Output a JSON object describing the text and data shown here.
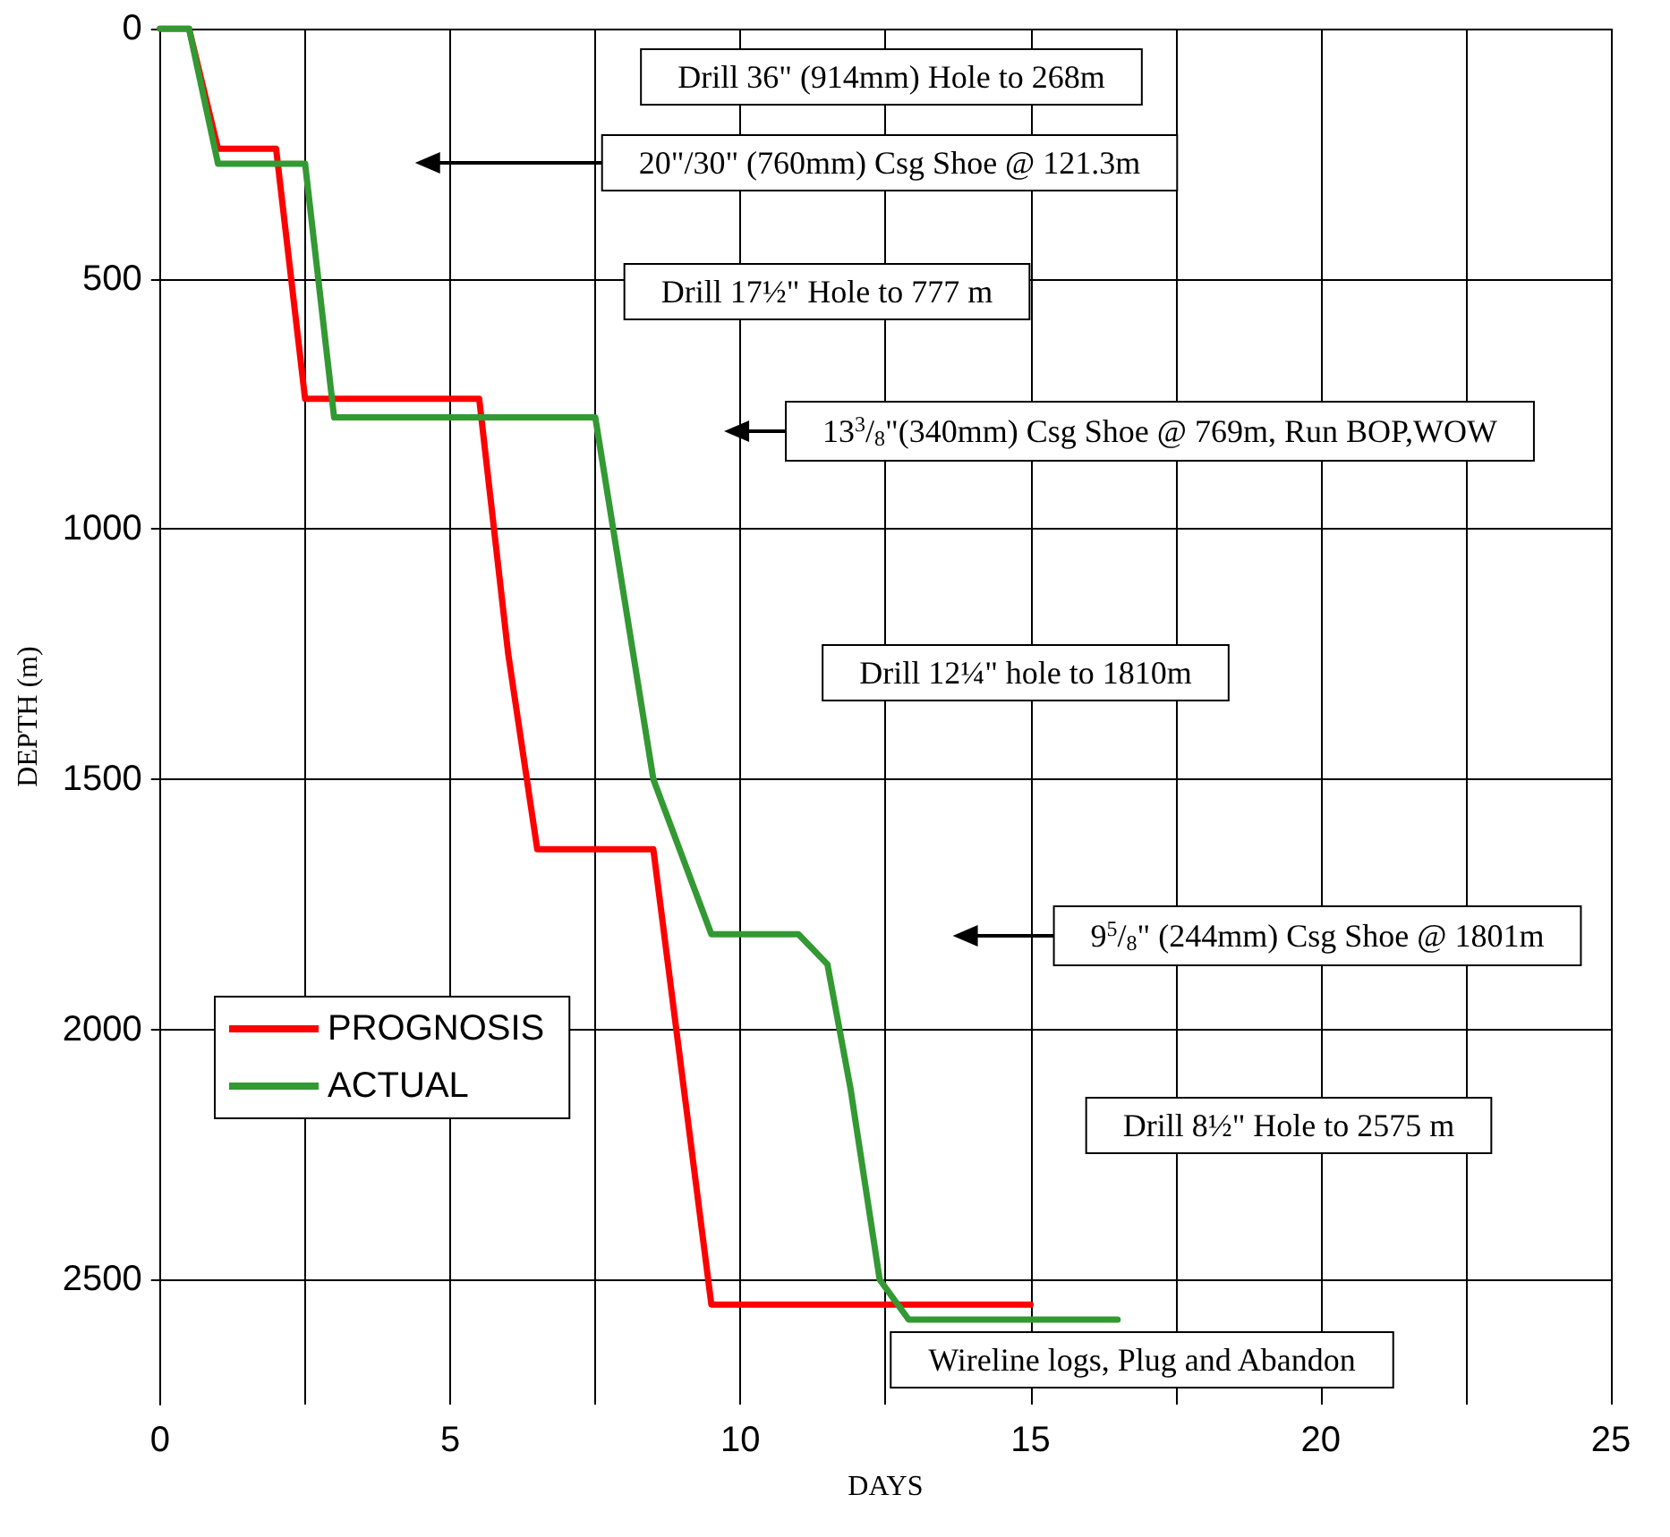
{
  "chart_data": {
    "type": "line",
    "xlabel": "DAYS",
    "ylabel": "DEPTH (m)",
    "xlim": [
      0,
      25
    ],
    "xticks": [
      0,
      {
        "value": 2.5,
        "label": null
      },
      5,
      {
        "value": 7.5,
        "label": null
      },
      10,
      {
        "value": 12.5,
        "label": null
      },
      15,
      {
        "value": 17.5,
        "label": null
      },
      20,
      {
        "value": 22.5,
        "label": null
      },
      25
    ],
    "ylim": [
      2750,
      0
    ],
    "yticks": [
      0,
      500,
      1000,
      1500,
      2000,
      2500
    ],
    "grid": true,
    "legend": "bottom left",
    "marker": "none",
    "line_style": "solid",
    "series": [
      {
        "name": "PROGNOSIS",
        "color": "#ff0000",
        "x": [
          0,
          0.5,
          1,
          2,
          2.5,
          5.5,
          6,
          6.5,
          8.5,
          9.5,
          15
        ],
        "values": [
          0,
          0,
          240,
          240,
          740,
          740,
          1250,
          1640,
          1640,
          2550,
          2550
        ]
      },
      {
        "name": "ACTUAL",
        "color": "#339933",
        "x": [
          0,
          0.5,
          1,
          2.5,
          3,
          7.5,
          8.5,
          9.5,
          11,
          11.5,
          11.9,
          12.4,
          12.9,
          16.5
        ],
        "values": [
          0,
          0,
          270,
          270,
          777,
          777,
          1500,
          1810,
          1810,
          1870,
          2120,
          2500,
          2580,
          2580
        ]
      }
    ],
    "annotations": [
      "Drill 36\" (914mm) Hole to 268m",
      "20\"/30\" (760mm) Csg Shoe @ 121.3m",
      "Drill 17½\" Hole to 777 m",
      "13$^{3}$/$_{8}$\"(340mm) Csg Shoe @ 769m, Run BOP,WOW",
      "Drill 12¼\" hole to 1810m",
      "9$^{5}$/$_{8}$\" (244mm) Csg Shoe @ 1801m",
      "Drill 8½\" Hole to 2575 m",
      "Wireline logs, Plug and Abandon"
    ]
  }
}
